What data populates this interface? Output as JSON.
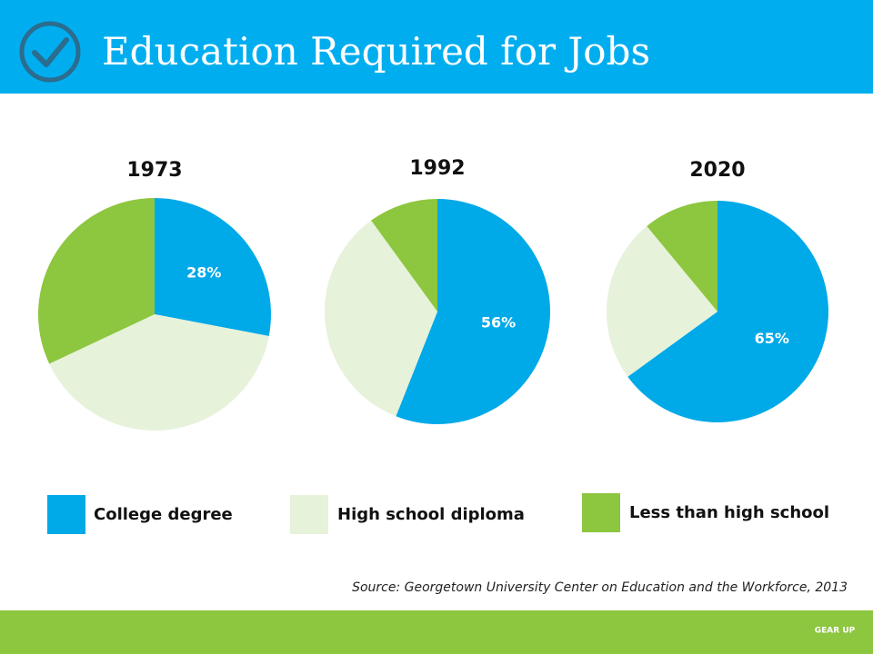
{
  "header": {
    "title": "Education Required for Jobs"
  },
  "chart_data": [
    {
      "type": "pie",
      "title": "1973",
      "categories": [
        "College degree",
        "High school diploma",
        "Less than high school"
      ],
      "colors": [
        "#00a9e8",
        "#e6f2da",
        "#8dc63f"
      ],
      "values": [
        28,
        40,
        32
      ],
      "value_labels": [
        "28%",
        null,
        null
      ]
    },
    {
      "type": "pie",
      "title": "1992",
      "values": [
        56,
        34,
        10
      ],
      "value_labels": [
        "56%",
        null,
        null
      ]
    },
    {
      "type": "pie",
      "title": "2020",
      "values": [
        65,
        24,
        11
      ],
      "value_labels": [
        "65%",
        null,
        null
      ]
    }
  ],
  "source": "Source: Georgetown University Center on Education and the Workforce, 2013",
  "footer": {
    "logo": "GEAR UP"
  }
}
